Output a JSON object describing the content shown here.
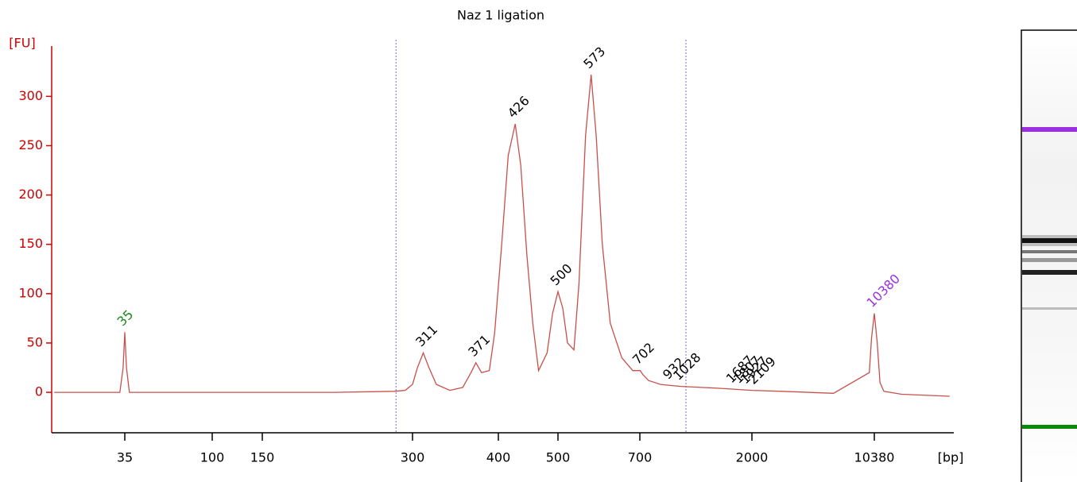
{
  "chart_data": {
    "type": "line",
    "title": "Naz 1 ligation",
    "ylabel": "[FU]",
    "xlabel": "[bp]",
    "ylim": [
      -41,
      351
    ],
    "yticks": [
      0,
      50,
      100,
      150,
      200,
      250,
      300
    ],
    "xticks": [
      35,
      100,
      150,
      300,
      400,
      500,
      700,
      2000,
      10380
    ],
    "x": [
      15,
      33,
      34.3,
      35,
      35.7,
      37,
      124,
      208,
      275,
      290,
      300,
      305,
      311,
      317,
      325,
      340,
      355,
      365,
      371,
      378,
      388,
      395,
      405,
      415,
      426,
      435,
      445,
      455,
      465,
      480,
      490,
      500,
      510,
      520,
      534,
      545,
      560,
      573,
      585,
      600,
      620,
      650,
      680,
      702,
      720,
      760,
      850,
      932,
      1028,
      1500,
      2000,
      3000,
      6000,
      9700,
      10000,
      10380,
      10800,
      11200,
      11800,
      15000,
      28600
    ],
    "values": [
      0,
      0,
      25,
      61,
      25,
      0,
      0,
      0,
      1,
      2,
      8,
      25,
      40,
      25,
      8,
      2,
      5,
      20,
      30,
      20,
      22,
      60,
      150,
      240,
      272,
      230,
      140,
      70,
      22,
      40,
      80,
      102,
      85,
      50,
      43,
      110,
      260,
      322,
      260,
      150,
      70,
      35,
      22,
      22,
      18,
      12,
      8,
      7,
      6,
      4,
      2,
      1,
      -1,
      20,
      55,
      80,
      50,
      10,
      1,
      -2,
      -4
    ],
    "color": "#c8504a",
    "region_bounds": [
      278,
      1078
    ],
    "peak_labels": {
      "values": [
        35,
        311,
        371,
        426,
        500,
        573,
        702,
        932,
        1028,
        1687,
        1807,
        1927,
        2109
      ],
      "colors": [
        "#1a8a1a",
        "#000000",
        "#000000",
        "#000000",
        "#000000",
        "#000000",
        "#000000",
        "#000000",
        "#000000",
        "#000000",
        "#000000",
        "#000000",
        "#000000"
      ]
    },
    "upper_marker_label": {
      "value": 10380,
      "color": "#9b30e0"
    }
  }
}
